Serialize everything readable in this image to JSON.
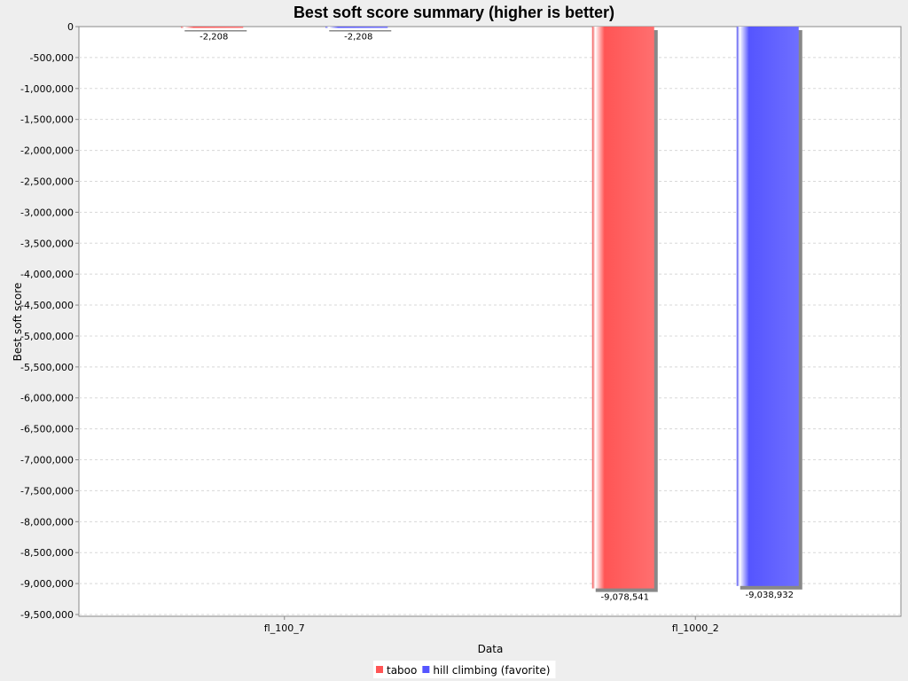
{
  "chart_data": {
    "type": "bar",
    "title": "Best soft score summary (higher is better)",
    "xlabel": "Data",
    "ylabel": "Best soft score",
    "categories": [
      "fl_100_7",
      "fl_1000_2"
    ],
    "series": [
      {
        "name": "taboo",
        "values": [
          -2208,
          -9078541
        ],
        "labels": [
          "-2,208",
          "-9,078,541"
        ],
        "color": "#ff5555"
      },
      {
        "name": "hill climbing (favorite)",
        "values": [
          -2208,
          -9038932
        ],
        "labels": [
          "-2,208",
          "-9,038,932"
        ],
        "color": "#5555ff"
      }
    ],
    "ylim": [
      -9500000,
      0
    ],
    "yticks": [
      0,
      -500000,
      -1000000,
      -1500000,
      -2000000,
      -2500000,
      -3000000,
      -3500000,
      -4000000,
      -4500000,
      -5000000,
      -5500000,
      -6000000,
      -6500000,
      -7000000,
      -7500000,
      -8000000,
      -8500000,
      -9000000,
      -9500000
    ],
    "ytick_labels": [
      "0",
      "-500,000",
      "-1,000,000",
      "-1,500,000",
      "-2,000,000",
      "-2,500,000",
      "-3,000,000",
      "-3,500,000",
      "-4,000,000",
      "-4,500,000",
      "-5,000,000",
      "-5,500,000",
      "-6,000,000",
      "-6,500,000",
      "-7,000,000",
      "-7,500,000",
      "-8,000,000",
      "-8,500,000",
      "-9,000,000",
      "-9,500,000"
    ],
    "grid": true,
    "legend": "bottom"
  }
}
